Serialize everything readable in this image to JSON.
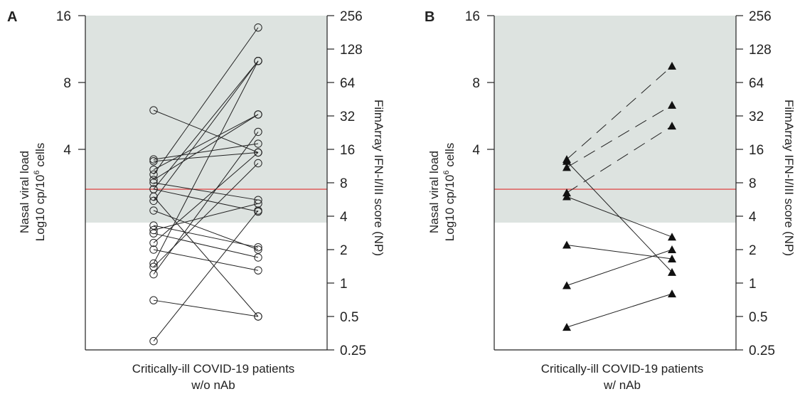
{
  "chart_data": [
    {
      "type": "scatter",
      "panel_label": "A",
      "xlabel": [
        "Critically-ill COVID-19 patients",
        "w/o nAb"
      ],
      "ylabel_left": [
        "Nasal viral load",
        "Log10 cp/10",
        "6",
        " cells"
      ],
      "ylabel_right": "FilmArray IFN-I/III score (NP)",
      "left_ticks": [
        {
          "value": 16,
          "label": "16"
        },
        {
          "value": 8,
          "label": "8"
        },
        {
          "value": 4,
          "label": "4"
        }
      ],
      "right_ticks": [
        {
          "value": 256,
          "label": "256"
        },
        {
          "value": 128,
          "label": "128"
        },
        {
          "value": 64,
          "label": "64"
        },
        {
          "value": 32,
          "label": "32"
        },
        {
          "value": 16,
          "label": "16"
        },
        {
          "value": 8,
          "label": "8"
        },
        {
          "value": 4,
          "label": "4"
        },
        {
          "value": 2,
          "label": "2"
        },
        {
          "value": 1,
          "label": "1"
        },
        {
          "value": 0.5,
          "label": "0.5"
        },
        {
          "value": 0.25,
          "label": "0.25"
        }
      ],
      "right_scale": "log2",
      "ylim_right": [
        0.25,
        256
      ],
      "shaded_region_right": [
        3.5,
        256
      ],
      "shade_color": "#dde3e0",
      "threshold_right": 7.0,
      "threshold_color": "#e03030",
      "marker": "circle-open",
      "line_style": "solid",
      "pairs": [
        [
          0.3,
          4.5
        ],
        [
          0.7,
          0.5
        ],
        [
          1.2,
          23
        ],
        [
          1.4,
          12
        ],
        [
          1.5,
          100
        ],
        [
          2,
          1.3
        ],
        [
          2.3,
          15
        ],
        [
          2.8,
          1.7
        ],
        [
          3.0,
          5.2
        ],
        [
          3.3,
          2.1
        ],
        [
          4.5,
          2.0
        ],
        [
          5.5,
          100
        ],
        [
          6.0,
          0.5
        ],
        [
          7.0,
          100
        ],
        [
          7.0,
          4.4
        ],
        [
          8.0,
          5.6
        ],
        [
          8.5,
          33
        ],
        [
          9.5,
          200
        ],
        [
          10.5,
          33
        ],
        [
          12.5,
          15
        ],
        [
          13,
          18
        ],
        [
          36,
          15
        ]
      ]
    },
    {
      "type": "scatter",
      "panel_label": "B",
      "xlabel": [
        "Critically-ill COVID-19 patients",
        "w/ nAb"
      ],
      "ylabel_left": [
        "Nasal viral load",
        "Log10 cp/10",
        "6",
        " cells"
      ],
      "ylabel_right": "FilmArray IFN-I/III score (NP)",
      "left_ticks": [
        {
          "value": 16,
          "label": "16"
        },
        {
          "value": 8,
          "label": "8"
        },
        {
          "value": 4,
          "label": "4"
        }
      ],
      "right_ticks": [
        {
          "value": 256,
          "label": "256"
        },
        {
          "value": 128,
          "label": "128"
        },
        {
          "value": 64,
          "label": "64"
        },
        {
          "value": 32,
          "label": "32"
        },
        {
          "value": 16,
          "label": "16"
        },
        {
          "value": 8,
          "label": "8"
        },
        {
          "value": 4,
          "label": "4"
        },
        {
          "value": 2,
          "label": "2"
        },
        {
          "value": 1,
          "label": "1"
        },
        {
          "value": 0.5,
          "label": "0.5"
        },
        {
          "value": 0.25,
          "label": "0.25"
        }
      ],
      "right_scale": "log2",
      "ylim_right": [
        0.25,
        256
      ],
      "shaded_region_right": [
        3.5,
        256
      ],
      "shade_color": "#dde3e0",
      "threshold_right": 7.0,
      "threshold_color": "#e03030",
      "marker": "triangle-filled",
      "pairs": [
        {
          "from": 0.4,
          "to": 0.8,
          "style": "solid"
        },
        {
          "from": 0.95,
          "to": 2.0,
          "style": "solid"
        },
        {
          "from": 2.2,
          "to": 1.65,
          "style": "solid"
        },
        {
          "from": 6.0,
          "to": 2.6,
          "style": "solid"
        },
        {
          "from": 12.5,
          "to": 1.25,
          "style": "solid"
        },
        {
          "from": 6.5,
          "to": 26,
          "style": "dashed"
        },
        {
          "from": 11,
          "to": 40,
          "style": "dashed"
        },
        {
          "from": 13,
          "to": 90,
          "style": "dashed"
        }
      ]
    }
  ]
}
